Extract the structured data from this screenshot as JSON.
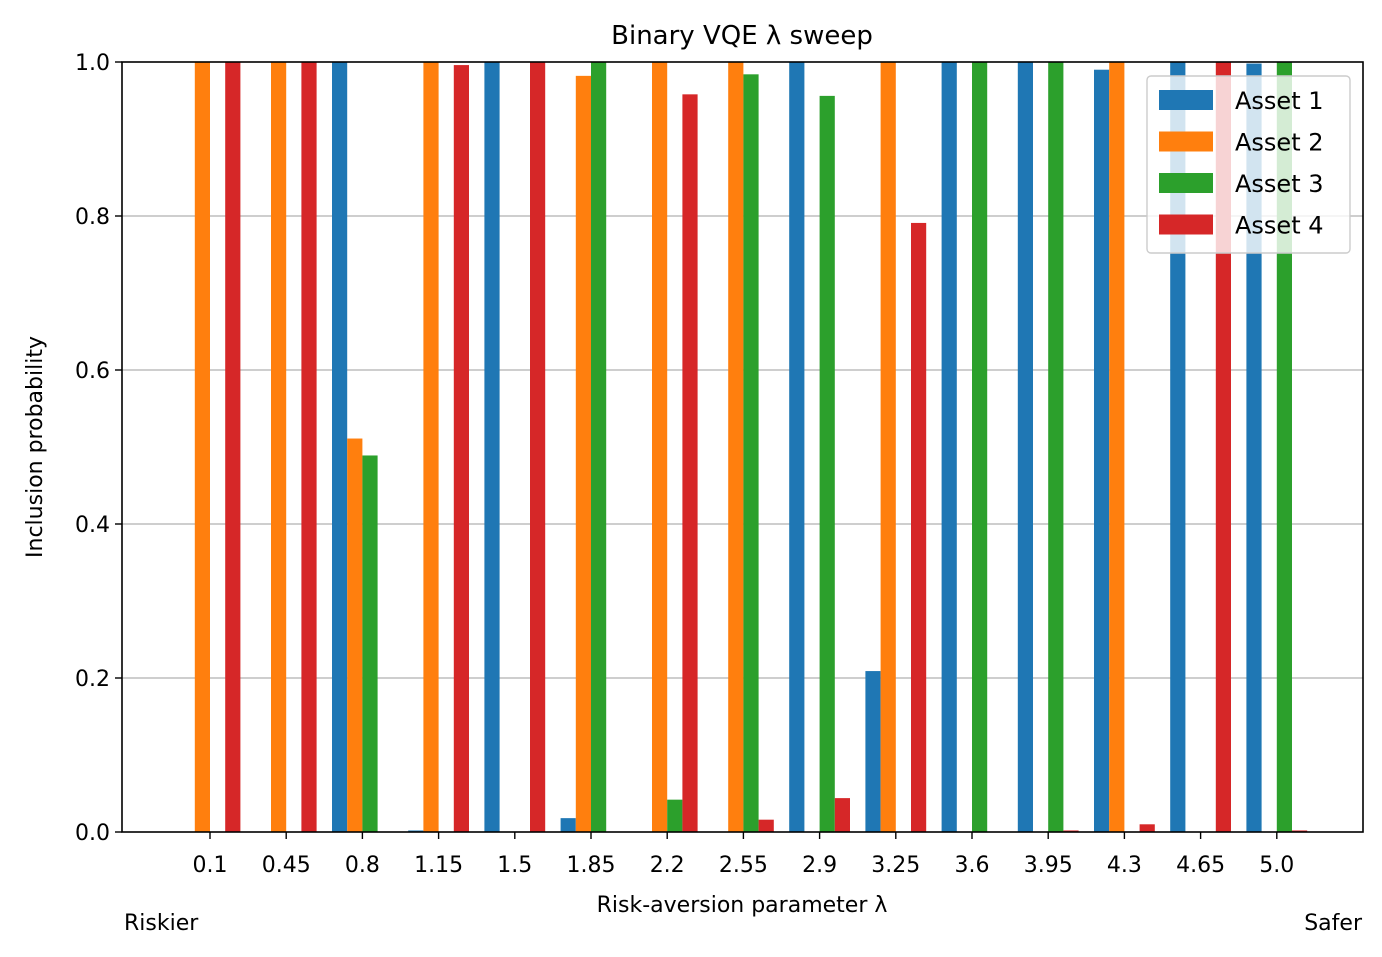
{
  "chart_data": {
    "type": "bar",
    "title": "Binary VQE λ sweep",
    "xlabel": "Risk-aversion parameter λ",
    "ylabel": "Inclusion probability",
    "ylim": [
      0,
      1.0
    ],
    "yticks": [
      "0.0",
      "0.2",
      "0.4",
      "0.6",
      "0.8",
      "1.0"
    ],
    "grid": "y",
    "legend_position": "top-right",
    "categories": [
      "0.1",
      "0.45",
      "0.8",
      "1.15",
      "1.5",
      "1.85",
      "2.2",
      "2.55",
      "2.9",
      "3.25",
      "3.6",
      "3.95",
      "4.3",
      "4.65",
      "5.0"
    ],
    "series": [
      {
        "name": "Asset 1",
        "color": "#1f77b4",
        "values": [
          0.0,
          0.0,
          1.0,
          0.002,
          1.0,
          0.018,
          0.0,
          0.0,
          1.0,
          0.209,
          1.0,
          1.0,
          0.99,
          1.0,
          0.998
        ]
      },
      {
        "name": "Asset 2",
        "color": "#ff7f0e",
        "values": [
          1.0,
          1.0,
          0.511,
          1.0,
          0.0,
          0.982,
          1.0,
          1.0,
          0.0,
          1.0,
          0.0,
          0.0,
          1.0,
          0.0,
          0.0
        ]
      },
      {
        "name": "Asset 3",
        "color": "#2ca02c",
        "values": [
          0.0,
          0.0,
          0.489,
          0.0,
          0.0,
          1.0,
          0.042,
          0.984,
          0.956,
          0.0,
          1.0,
          1.0,
          0.0,
          0.0,
          1.0
        ]
      },
      {
        "name": "Asset 4",
        "color": "#d62728",
        "values": [
          1.0,
          1.0,
          0.0,
          0.996,
          1.0,
          0.0,
          0.958,
          0.016,
          0.044,
          0.791,
          0.0,
          0.002,
          0.01,
          1.0,
          0.002
        ]
      }
    ],
    "annotations": [
      {
        "text": "Riskier",
        "color": "#ff0000",
        "position": "bottom-left"
      },
      {
        "text": "Safer",
        "color": "#008000",
        "position": "bottom-right"
      }
    ]
  }
}
